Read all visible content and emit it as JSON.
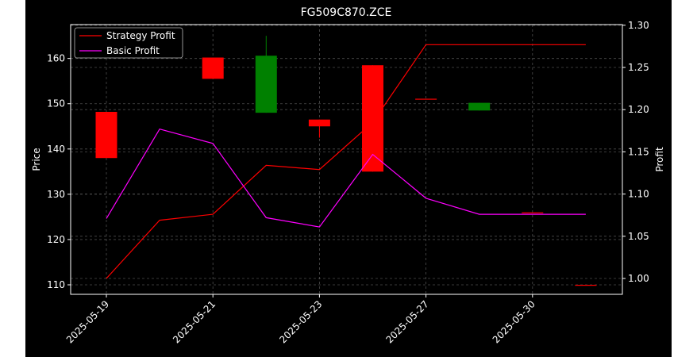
{
  "chart_data": {
    "type": "candlestick+line",
    "title": "FG509C870.ZCE",
    "ylabel": "Price",
    "y2label": "Profit",
    "x_ticks": [
      "2025-05-19",
      "2025-05-21",
      "2025-05-23",
      "2025-05-27",
      "2025-05-30"
    ],
    "ylim": [
      108,
      168
    ],
    "y_ticks": [
      110,
      120,
      130,
      140,
      150,
      160
    ],
    "y2lim": [
      0.985,
      1.3
    ],
    "y2_ticks": [
      1.0,
      1.05,
      1.1,
      1.15,
      1.2,
      1.25,
      1.3
    ],
    "y2_tick_labels": [
      "1.00",
      "1.05",
      "1.10",
      "1.15",
      "1.20",
      "1.25",
      "1.30"
    ],
    "grid": true,
    "legend_position": "top-left",
    "candles": [
      {
        "x": 0,
        "open": 148.2,
        "close": 138.0,
        "high": 148.2,
        "low": 138.0
      },
      {
        "x": 2,
        "open": 160.2,
        "close": 155.5,
        "high": 160.2,
        "low": 155.5
      },
      {
        "x": 3,
        "open": 148.0,
        "close": 160.6,
        "high": 165.0,
        "low": 148.0
      },
      {
        "x": 4,
        "open": 146.5,
        "close": 145.0,
        "high": 146.5,
        "low": 142.5
      },
      {
        "x": 5,
        "open": 158.5,
        "close": 135.0,
        "high": 158.5,
        "low": 135.0
      },
      {
        "x": 6,
        "open": 151.1,
        "close": 151.1,
        "high": 151.1,
        "low": 151.1
      },
      {
        "x": 7,
        "open": 148.5,
        "close": 150.2,
        "high": 150.2,
        "low": 148.5
      },
      {
        "x": 8,
        "open": 126.0,
        "close": 126.0,
        "high": 126.0,
        "low": 126.0
      },
      {
        "x": 9,
        "open": 110.0,
        "close": 110.0,
        "high": 110.0,
        "low": 110.0
      }
    ],
    "series": [
      {
        "name": "Strategy Profit",
        "color": "#ff0000",
        "x": [
          0,
          1,
          2,
          3,
          4,
          5,
          6,
          7,
          8,
          9
        ],
        "values": [
          1.0,
          1.069,
          1.076,
          1.134,
          1.129,
          1.185,
          1.277,
          1.277,
          1.277,
          1.277
        ]
      },
      {
        "name": "Basic Profit",
        "color": "#ff00ff",
        "x": [
          0,
          1,
          2,
          3,
          4,
          5,
          6,
          7,
          8,
          9
        ],
        "values": [
          1.071,
          1.177,
          1.16,
          1.072,
          1.061,
          1.147,
          1.095,
          1.076,
          1.076,
          1.076
        ]
      }
    ],
    "colors": {
      "up": "#008000",
      "down": "#ff0000",
      "background": "#000000",
      "foreground": "#ffffff",
      "grid": "#808080"
    }
  }
}
